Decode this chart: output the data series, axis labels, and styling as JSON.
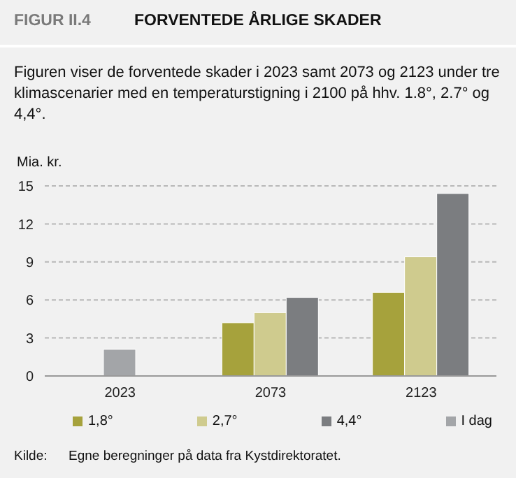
{
  "chart_data": {
    "type": "bar",
    "title": "FORVENTEDE ÅRLIGE SKADER",
    "subtitle": "Figuren viser de forventede skader i 2023 samt 2073 og 2123 under tre klimascenarier med en temperaturstigning i 2100 på hhv. 1.8°, 2.7° og 4,4°.",
    "ylabel": "Mia. kr.",
    "annotations": [
      "FIGUR II.4",
      "Kilde:",
      "Egne beregninger på data fra Kystdirektoratet."
    ],
    "categories": [
      "2023",
      "2073",
      "2123"
    ],
    "series": [
      {
        "name": "1,8°",
        "color": "#a6a23c",
        "values": [
          null,
          4.2,
          6.6
        ]
      },
      {
        "name": "2,7°",
        "color": "#cfcb8e",
        "values": [
          null,
          5.0,
          9.4
        ]
      },
      {
        "name": "4,4°",
        "color": "#7b7d80",
        "values": [
          null,
          6.2,
          14.4
        ]
      },
      {
        "name": "I dag",
        "color": "#a3a5a8",
        "values": [
          2.1,
          null,
          null
        ]
      }
    ],
    "ylim": [
      0,
      15
    ],
    "yticks": [
      0,
      3,
      6,
      9,
      12,
      15
    ],
    "grid": "y",
    "legend": "bottom"
  }
}
